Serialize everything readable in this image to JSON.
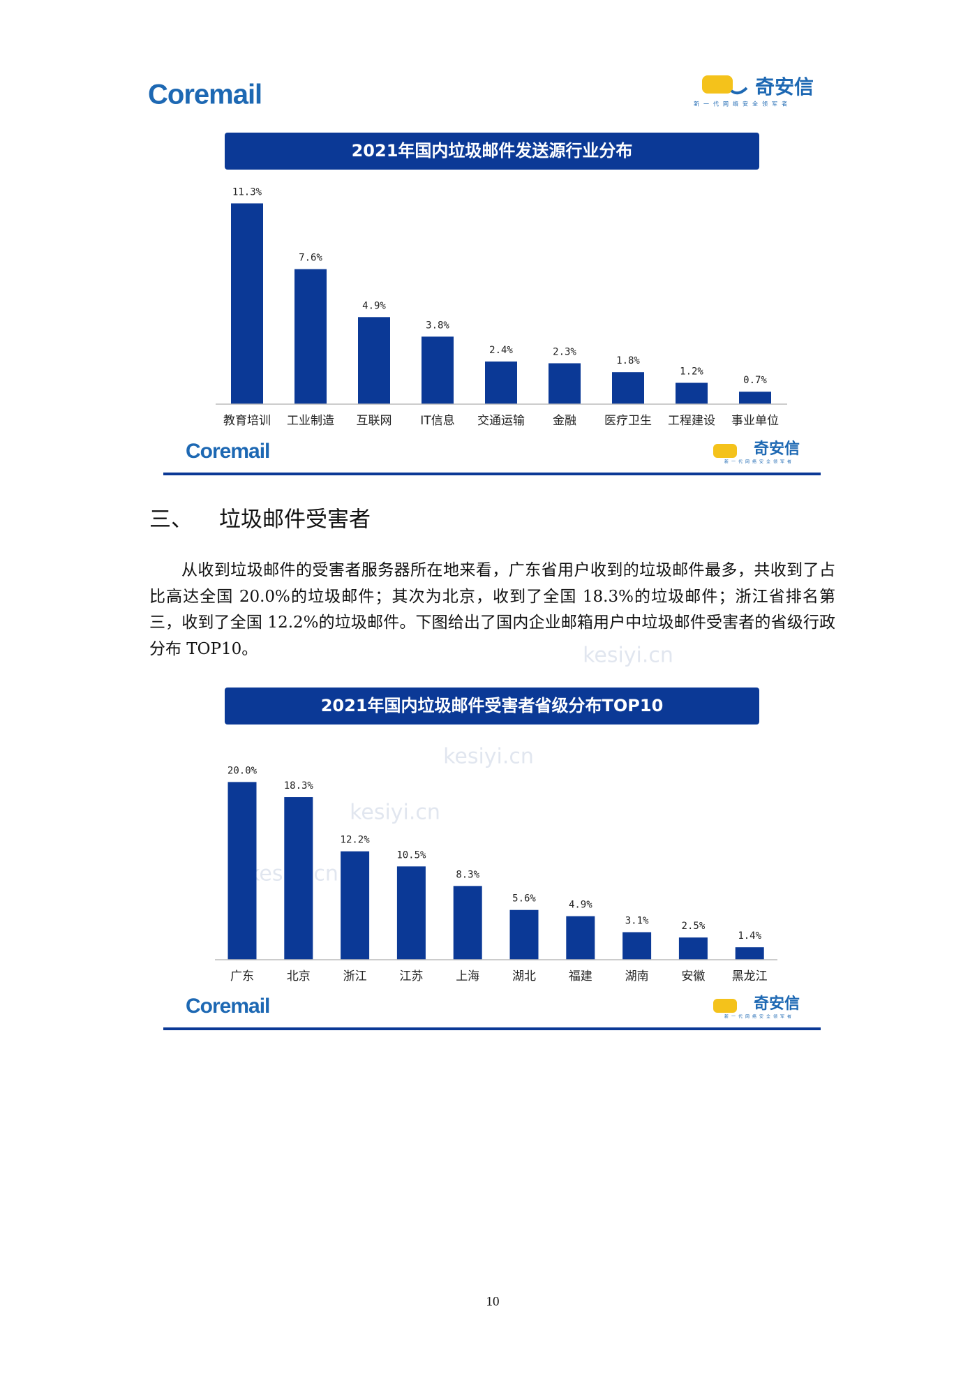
{
  "header": {
    "left_logo": "Coremail",
    "right_logo": "奇安信",
    "right_tagline": "新一代网络安全领军者"
  },
  "watermark": "kesiyi.cn",
  "chart_data": [
    {
      "type": "bar",
      "title": "2021年国内垃圾邮件发送源行业分布",
      "categories": [
        "教育培训",
        "工业制造",
        "互联网",
        "IT信息",
        "交通运输",
        "金融",
        "医疗卫生",
        "工程建设",
        "事业单位"
      ],
      "values": [
        11.3,
        7.6,
        4.9,
        3.8,
        2.4,
        2.3,
        1.8,
        1.2,
        0.7
      ],
      "value_labels": [
        "11.3%",
        "7.6%",
        "4.9%",
        "3.8%",
        "2.4%",
        "2.3%",
        "1.8%",
        "1.2%",
        "0.7%"
      ],
      "color": "#0b3996"
    },
    {
      "type": "bar",
      "title": "2021年国内垃圾邮件受害者省级分布TOP10",
      "categories": [
        "广东",
        "北京",
        "浙江",
        "江苏",
        "上海",
        "湖北",
        "福建",
        "湖南",
        "安徽",
        "黑龙江"
      ],
      "values": [
        20.0,
        18.3,
        12.2,
        10.5,
        8.3,
        5.6,
        4.9,
        3.1,
        2.5,
        1.4
      ],
      "value_labels": [
        "20.0%",
        "18.3%",
        "12.2%",
        "10.5%",
        "8.3%",
        "5.6%",
        "4.9%",
        "3.1%",
        "2.5%",
        "1.4%"
      ],
      "color": "#0b3996"
    }
  ],
  "section": {
    "number": "三、",
    "heading": "垃圾邮件受害者",
    "paragraph": "从收到垃圾邮件的受害者服务器所在地来看，广东省用户收到的垃圾邮件最多，共收到了占比高达全国 20.0%的垃圾邮件；其次为北京，收到了全国 18.3%的垃圾邮件；浙江省排名第三，收到了全国 12.2%的垃圾邮件。下图给出了国内企业邮箱用户中垃圾邮件受害者的省级行政分布 TOP10。"
  },
  "page_number": "10"
}
